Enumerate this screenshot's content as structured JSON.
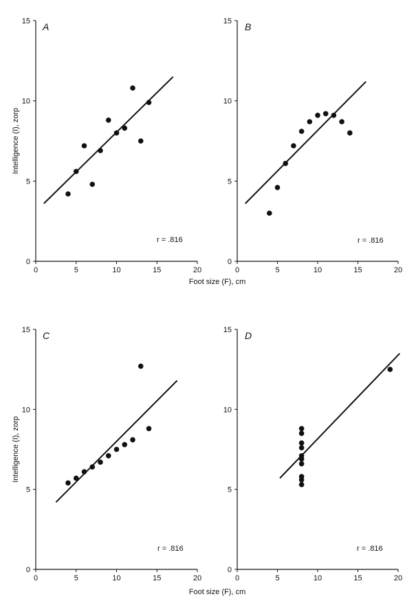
{
  "figure": {
    "x_axis_label": "Foot size (F), cm",
    "y_axis_label": "Intelligence (I), zorp"
  },
  "chart_data": [
    {
      "type": "scatter",
      "panel": "A",
      "annotation": "r = .816",
      "xlim": [
        0,
        20
      ],
      "ylim": [
        0,
        15
      ],
      "x_ticks": [
        "0",
        "5",
        "10",
        "15",
        "20"
      ],
      "y_ticks": [
        "0",
        "5",
        "10",
        "15"
      ],
      "points": [
        [
          4,
          4.2
        ],
        [
          5,
          5.6
        ],
        [
          6,
          7.2
        ],
        [
          7,
          4.8
        ],
        [
          8,
          6.9
        ],
        [
          9,
          8.8
        ],
        [
          10,
          8.0
        ],
        [
          11,
          8.3
        ],
        [
          12,
          10.8
        ],
        [
          13,
          7.5
        ],
        [
          14,
          9.9
        ]
      ],
      "fit_line": {
        "from": [
          1,
          3.6
        ],
        "to": [
          17,
          11.5
        ]
      }
    },
    {
      "type": "scatter",
      "panel": "B",
      "annotation": "r = .816",
      "xlim": [
        0,
        20
      ],
      "ylim": [
        0,
        15
      ],
      "x_ticks": [
        "0",
        "5",
        "10",
        "15",
        "20"
      ],
      "y_ticks": [
        "0",
        "5",
        "10",
        "15"
      ],
      "points": [
        [
          4,
          3.0
        ],
        [
          5,
          4.6
        ],
        [
          6,
          6.1
        ],
        [
          7,
          7.2
        ],
        [
          8,
          8.1
        ],
        [
          9,
          8.7
        ],
        [
          10,
          9.1
        ],
        [
          11,
          9.2
        ],
        [
          12,
          9.1
        ],
        [
          13,
          8.7
        ],
        [
          14,
          8.0
        ]
      ],
      "fit_line": {
        "from": [
          1,
          3.6
        ],
        "to": [
          16,
          11.2
        ]
      }
    },
    {
      "type": "scatter",
      "panel": "C",
      "annotation": "r = .816",
      "xlim": [
        0,
        20
      ],
      "ylim": [
        0,
        15
      ],
      "x_ticks": [
        "0",
        "5",
        "10",
        "15",
        "20"
      ],
      "y_ticks": [
        "0",
        "5",
        "10",
        "15"
      ],
      "points": [
        [
          4,
          5.4
        ],
        [
          5,
          5.7
        ],
        [
          6,
          6.1
        ],
        [
          7,
          6.4
        ],
        [
          8,
          6.7
        ],
        [
          9,
          7.1
        ],
        [
          10,
          7.5
        ],
        [
          11,
          7.8
        ],
        [
          12,
          8.1
        ],
        [
          13,
          12.7
        ],
        [
          14,
          8.8
        ]
      ],
      "fit_line": {
        "from": [
          2.5,
          4.2
        ],
        "to": [
          17.5,
          11.8
        ]
      }
    },
    {
      "type": "scatter",
      "panel": "D",
      "annotation": "r = .816",
      "xlim": [
        0,
        20
      ],
      "ylim": [
        0,
        15
      ],
      "x_ticks": [
        "0",
        "5",
        "10",
        "15",
        "20"
      ],
      "y_ticks": [
        "0",
        "5",
        "10",
        "15"
      ],
      "points": [
        [
          8,
          5.3
        ],
        [
          8,
          5.6
        ],
        [
          8,
          5.8
        ],
        [
          8,
          6.6
        ],
        [
          8,
          6.9
        ],
        [
          8,
          7.1
        ],
        [
          8,
          7.6
        ],
        [
          8,
          7.9
        ],
        [
          8,
          8.5
        ],
        [
          8,
          8.8
        ],
        [
          19,
          12.5
        ]
      ],
      "fit_line": {
        "from": [
          5.3,
          5.7
        ],
        "to": [
          20.2,
          13.5
        ]
      }
    }
  ]
}
